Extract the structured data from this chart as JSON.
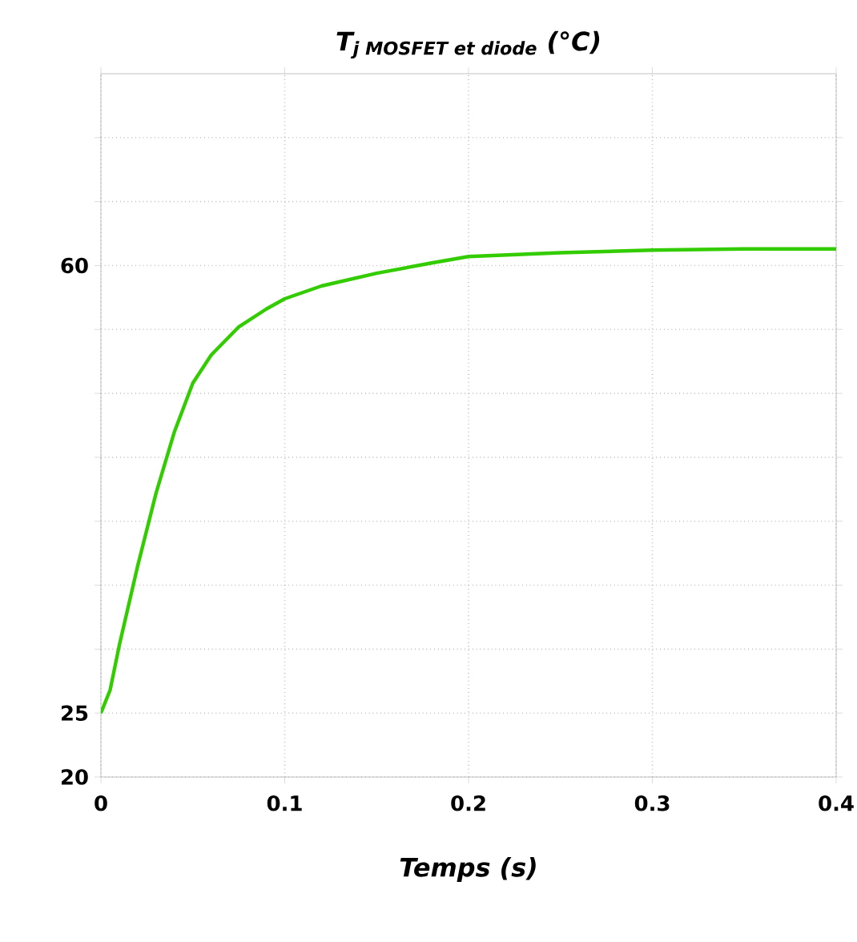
{
  "chart_data": {
    "type": "line",
    "title": "\\text{T}_{\\text{j MOSFET et diode}}\\text{ (°C)}",
    "xlabel": "Temps (s)",
    "x": [
      0,
      0.005,
      0.01,
      0.02,
      0.03,
      0.04,
      0.05,
      0.06,
      0.075,
      0.09,
      0.1,
      0.12,
      0.15,
      0.18,
      0.2,
      0.25,
      0.3,
      0.35,
      0.4
    ],
    "series": [
      {
        "color": "#33cc00",
        "values": [
          25,
          26.8,
          30.3,
          36.5,
          42.2,
          47,
          50.8,
          53,
          55.2,
          56.6,
          57.4,
          58.4,
          59.4,
          60.2,
          60.7,
          61,
          61.2,
          61.3,
          61.3
        ]
      }
    ],
    "xlim": [
      0,
      0.4
    ],
    "xticks": [
      0,
      0.1,
      0.2,
      0.3,
      0.4
    ],
    "ylim": [
      20,
      75
    ],
    "yticks": [
      20,
      25,
      {
        "value": 30,
        "label": null
      },
      {
        "value": 35,
        "label": null
      },
      {
        "value": 40,
        "label": null
      },
      {
        "value": 45,
        "label": null
      },
      {
        "value": 50,
        "label": null
      },
      {
        "value": 55,
        "label": null
      },
      60,
      {
        "value": 65,
        "label": null
      },
      {
        "value": 70,
        "label": null
      }
    ],
    "grid": true,
    "line_style": "solid",
    "marker": "none"
  }
}
